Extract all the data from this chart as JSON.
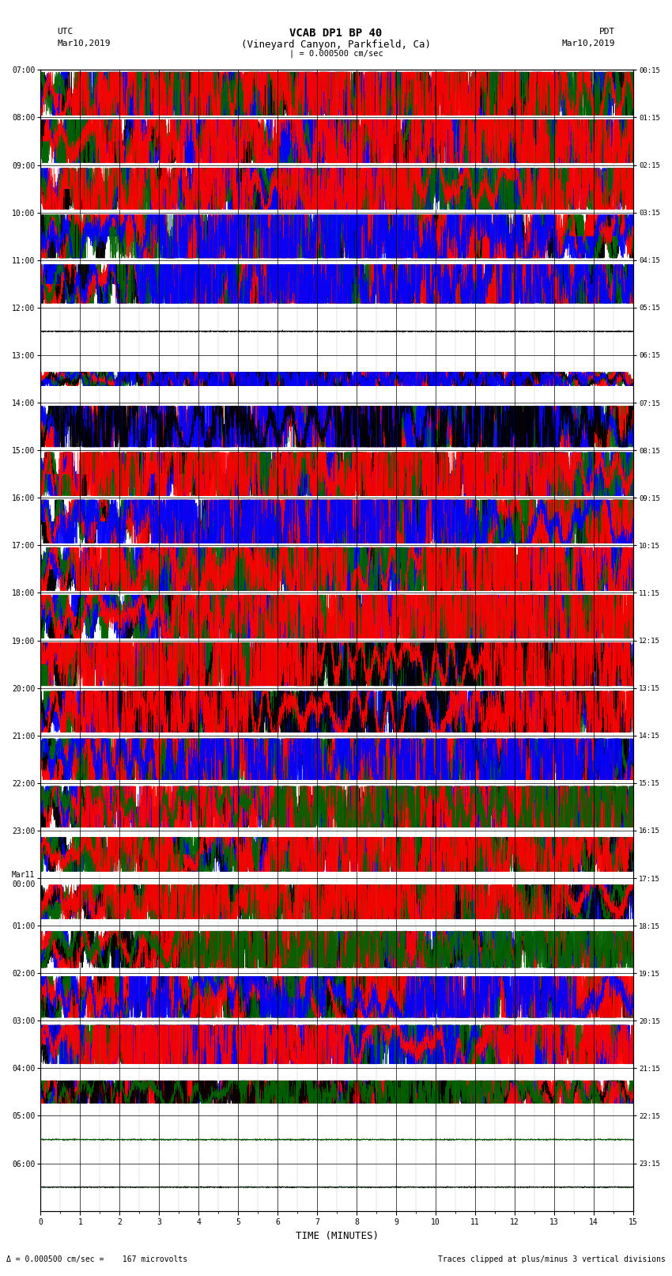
{
  "title_line1": "VCAB DP1 BP 40",
  "title_line2": "(Vineyard Canyon, Parkfield, Ca)",
  "scale_bar_label": "| = 0.000500 cm/sec",
  "left_label_top": "UTC",
  "left_label_date": "Mar10,2019",
  "right_label_top": "PDT",
  "right_label_date": "Mar10,2019",
  "xlabel": "TIME (MINUTES)",
  "bottom_left_text": "Δ = 0.000500 cm/sec =    167 microvolts",
  "bottom_right_text": "Traces clipped at plus/minus 3 vertical divisions",
  "utc_times": [
    "07:00",
    "08:00",
    "09:00",
    "10:00",
    "11:00",
    "12:00",
    "13:00",
    "14:00",
    "15:00",
    "16:00",
    "17:00",
    "18:00",
    "19:00",
    "20:00",
    "21:00",
    "22:00",
    "23:00",
    "Mar11\n00:00",
    "01:00",
    "02:00",
    "03:00",
    "04:00",
    "05:00",
    "06:00"
  ],
  "pdt_times": [
    "00:15",
    "01:15",
    "02:15",
    "03:15",
    "04:15",
    "05:15",
    "06:15",
    "07:15",
    "08:15",
    "09:15",
    "10:15",
    "11:15",
    "12:15",
    "13:15",
    "14:15",
    "15:15",
    "16:15",
    "17:15",
    "18:15",
    "19:15",
    "20:15",
    "21:15",
    "22:15",
    "23:15"
  ],
  "n_rows": 24,
  "x_min": 0,
  "x_max": 15,
  "x_ticks": [
    0,
    1,
    2,
    3,
    4,
    5,
    6,
    7,
    8,
    9,
    10,
    11,
    12,
    13,
    14,
    15
  ],
  "colors": {
    "red": "#ff0000",
    "green": "#006400",
    "blue": "#0000ff",
    "black": "#000000",
    "white": "#ffffff"
  },
  "row_configs": [
    {
      "amp": 0.95,
      "active": true,
      "channels": [
        "red",
        "green",
        "blue",
        "black"
      ]
    },
    {
      "amp": 0.95,
      "active": true,
      "channels": [
        "red",
        "green",
        "blue",
        "black"
      ]
    },
    {
      "amp": 0.9,
      "active": true,
      "channels": [
        "red",
        "green",
        "blue",
        "black"
      ]
    },
    {
      "amp": 0.95,
      "active": true,
      "channels": [
        "blue",
        "red",
        "green",
        "black"
      ]
    },
    {
      "amp": 0.85,
      "active": true,
      "channels": [
        "blue",
        "red",
        "green",
        "black"
      ]
    },
    {
      "amp": 0.05,
      "active": false,
      "channels": [
        "black"
      ]
    },
    {
      "amp": 0.3,
      "active": true,
      "channels": [
        "blue",
        "black",
        "red",
        "green"
      ]
    },
    {
      "amp": 0.9,
      "active": true,
      "channels": [
        "black",
        "blue",
        "red",
        "green"
      ]
    },
    {
      "amp": 0.95,
      "active": true,
      "channels": [
        "red",
        "green",
        "blue",
        "black"
      ]
    },
    {
      "amp": 0.95,
      "active": true,
      "channels": [
        "blue",
        "red",
        "green",
        "black"
      ]
    },
    {
      "amp": 0.95,
      "active": true,
      "channels": [
        "red",
        "green",
        "blue",
        "black"
      ]
    },
    {
      "amp": 0.95,
      "active": true,
      "channels": [
        "red",
        "green",
        "blue",
        "black"
      ]
    },
    {
      "amp": 0.95,
      "active": true,
      "channels": [
        "red",
        "black",
        "green",
        "blue"
      ]
    },
    {
      "amp": 0.9,
      "active": true,
      "channels": [
        "red",
        "black",
        "blue",
        "green"
      ]
    },
    {
      "amp": 0.9,
      "active": true,
      "channels": [
        "blue",
        "red",
        "green",
        "black"
      ]
    },
    {
      "amp": 0.9,
      "active": true,
      "channels": [
        "green",
        "red",
        "blue",
        "black"
      ]
    },
    {
      "amp": 0.75,
      "active": true,
      "channels": [
        "red",
        "green",
        "black",
        "blue"
      ]
    },
    {
      "amp": 0.75,
      "active": true,
      "channels": [
        "red",
        "green",
        "black",
        "blue"
      ]
    },
    {
      "amp": 0.8,
      "active": true,
      "channels": [
        "green",
        "red",
        "black",
        "blue"
      ]
    },
    {
      "amp": 0.9,
      "active": true,
      "channels": [
        "blue",
        "red",
        "green",
        "black"
      ]
    },
    {
      "amp": 0.85,
      "active": true,
      "channels": [
        "red",
        "blue",
        "green",
        "black"
      ]
    },
    {
      "amp": 0.5,
      "active": true,
      "channels": [
        "green",
        "black",
        "red",
        "blue"
      ]
    },
    {
      "amp": 0.04,
      "active": false,
      "channels": [
        "black",
        "green"
      ]
    },
    {
      "amp": 0.04,
      "active": false,
      "channels": [
        "green",
        "black"
      ]
    }
  ],
  "fig_width": 8.5,
  "fig_height": 16.13,
  "dpi": 100
}
